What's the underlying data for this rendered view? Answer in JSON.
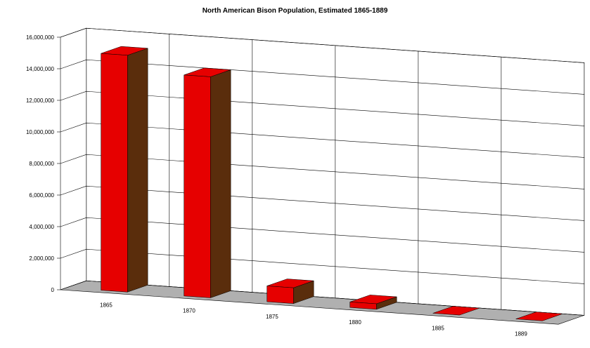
{
  "chart_data": {
    "type": "bar",
    "title": "North American Bison Population, Estimated 1865-1889",
    "categories": [
      "1865",
      "1870",
      "1875",
      "1880",
      "1885",
      "1889"
    ],
    "values": [
      15000000,
      14000000,
      1000000,
      350000,
      0,
      0
    ],
    "ylim": [
      0,
      16000000
    ],
    "yticks": [
      0,
      2000000,
      4000000,
      6000000,
      8000000,
      10000000,
      12000000,
      14000000,
      16000000
    ],
    "ytick_labels": [
      "0",
      "2,000,000",
      "4,000,000",
      "6,000,000",
      "8,000,000",
      "10,000,000",
      "12,000,000",
      "14,000,000",
      "16,000,000"
    ],
    "grid": true,
    "legend": "none",
    "style": "3d",
    "colors": {
      "bar_front": "#e60000",
      "bar_side": "#5a2d0c",
      "bar_top": "#e60000",
      "floor": "#b0b0b0",
      "grid": "#000000"
    }
  }
}
